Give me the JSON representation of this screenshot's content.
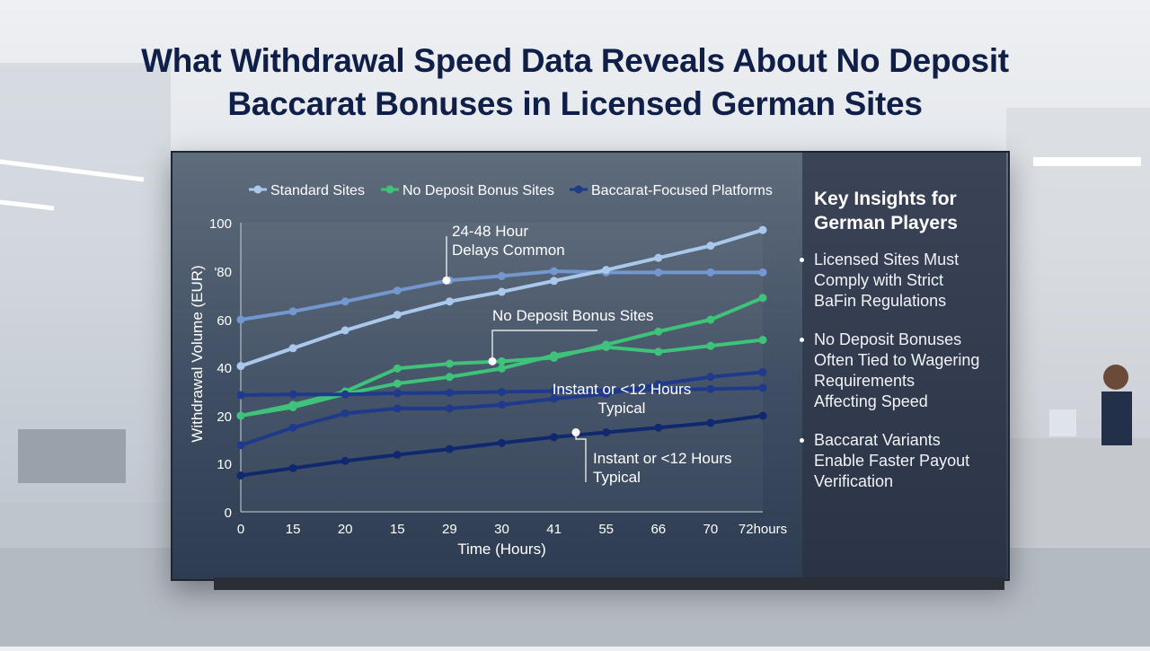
{
  "page_title_line1": "What Withdrawal Speed Data Reveals About No Deposit",
  "page_title_line2": "Baccarat Bonuses in Licensed German Sites",
  "insights": {
    "title_line1": "Key Insights for",
    "title_line2": "German Players",
    "items": [
      [
        "Licensed Sites Must",
        "Comply with Strict",
        "BaFin Regulations"
      ],
      [
        "No Deposit Bonuses",
        "Often Tied to Wagering",
        "Requirements",
        "Affecting Speed"
      ],
      [
        "Baccarat Variants",
        "Enable Faster Payout",
        "Verification"
      ]
    ]
  },
  "colors": {
    "standard": "#a9c8ec",
    "standard_upper": "#7397cf",
    "no_deposit": "#3fc27a",
    "baccarat": "#1f3a8a",
    "baccarat_lower": "#10296e"
  },
  "chart_data": {
    "type": "line",
    "xlabel": "Time (Hours)",
    "ylabel": "Withdrawal Volume (EUR)",
    "x_ticks": [
      "0",
      "15",
      "20",
      "15",
      "29",
      "30",
      "41",
      "55",
      "66",
      "70",
      "72hours"
    ],
    "y_ticks": [
      "0",
      "10",
      "20",
      "40",
      "60",
      "'80",
      "100"
    ],
    "y_tick_values": [
      0,
      10,
      20,
      40,
      60,
      80,
      100
    ],
    "legend": [
      "Standard Sites",
      "No Deposit Bonus Sites",
      "Baccarat-Focused Platforms"
    ],
    "legend_position": "top",
    "grid": false,
    "series": [
      {
        "name": "Standard Sites",
        "color_key": "standard_upper",
        "values": [
          60,
          63.4,
          67.5,
          72,
          76.2,
          78,
          80,
          79.5,
          79.5,
          79.5,
          79.5
        ]
      },
      {
        "name": "Standard Sites",
        "color_key": "standard",
        "values": [
          40.5,
          48,
          55.5,
          62,
          67.5,
          71.5,
          76,
          80.5,
          85.5,
          90.5,
          97
        ]
      },
      {
        "name": "No Deposit Bonus Sites",
        "color_key": "no_deposit",
        "values": [
          20,
          24.5,
          30,
          39.5,
          41.5,
          42.5,
          44,
          49.5,
          55,
          60,
          69
        ]
      },
      {
        "name": "No Deposit Bonus Sites",
        "color_key": "no_deposit",
        "values": [
          20,
          23.5,
          29,
          33.3,
          36,
          39.5,
          45,
          48.5,
          46.5,
          49,
          51.5
        ]
      },
      {
        "name": "Baccarat-Focused Platforms",
        "color_key": "baccarat",
        "values": [
          28.5,
          28.8,
          28.8,
          29.3,
          29.5,
          29.8,
          30.2,
          30.5,
          30.8,
          31,
          31.5
        ]
      },
      {
        "name": "Baccarat-Focused Platforms",
        "color_key": "baccarat",
        "values": [
          13.8,
          17.5,
          21,
          23,
          23,
          24.5,
          27,
          29,
          33,
          36,
          38
        ]
      },
      {
        "name": "Baccarat-Focused Platforms",
        "color_key": "baccarat_lower",
        "values": [
          7.5,
          9,
          10.5,
          11.8,
          13,
          14.3,
          15.5,
          16.5,
          17.5,
          18.5,
          20
        ]
      }
    ],
    "annotations": [
      {
        "lines": [
          "24-48 Hour",
          "Delays Common"
        ],
        "series_index": 0,
        "point_index": 4
      },
      {
        "lines": [
          "No Deposit Bonus Sites"
        ],
        "series_index": 2,
        "point_index": 5
      },
      {
        "lines": [
          "Instant or <12 Hours",
          "Typical"
        ],
        "series_index": 4,
        "point_index": 6
      },
      {
        "lines": [
          "Instant or <12 Hours",
          "Typical"
        ],
        "series_index": 6,
        "point_index": 7
      }
    ]
  }
}
